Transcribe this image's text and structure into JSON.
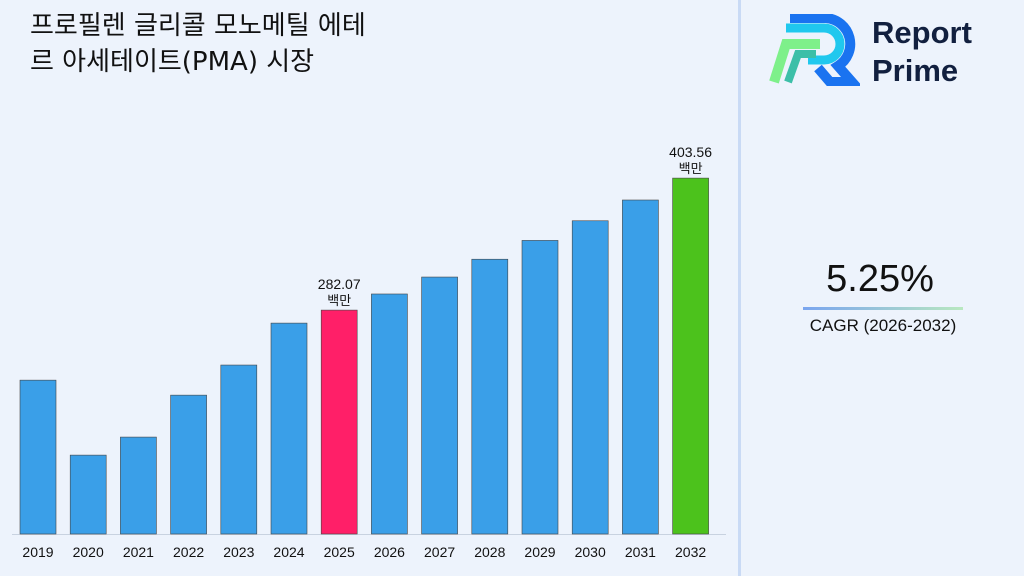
{
  "title": "프로필렌 글리콜 모노메틸 에테\n르 아세테이트(PMA) 시장",
  "brand": {
    "line1": "Report",
    "line2": "Prime"
  },
  "cagr": {
    "value": "5.25%",
    "label": "CAGR (2026-2032)"
  },
  "chart_data": {
    "type": "bar",
    "categories": [
      "2019",
      "2020",
      "2021",
      "2022",
      "2023",
      "2024",
      "2025",
      "2026",
      "2027",
      "2028",
      "2029",
      "2030",
      "2031",
      "2032"
    ],
    "values": [
      217.6,
      148.6,
      165.2,
      203.8,
      231.5,
      270.1,
      282.07,
      296.9,
      312.5,
      328.9,
      346.2,
      364.3,
      383.4,
      403.56
    ],
    "colors": [
      "#3a9fe8",
      "#3a9fe8",
      "#3a9fe8",
      "#3a9fe8",
      "#3a9fe8",
      "#3a9fe8",
      "#ff1f68",
      "#3a9fe8",
      "#3a9fe8",
      "#3a9fe8",
      "#3a9fe8",
      "#3a9fe8",
      "#3a9fe8",
      "#4cc21c"
    ],
    "annotations": [
      {
        "index": 6,
        "text": "282.07",
        "unit": "백만"
      },
      {
        "index": 13,
        "text": "403.56",
        "unit": "백만"
      }
    ],
    "ylim": [
      76,
      420
    ],
    "grid": false
  }
}
